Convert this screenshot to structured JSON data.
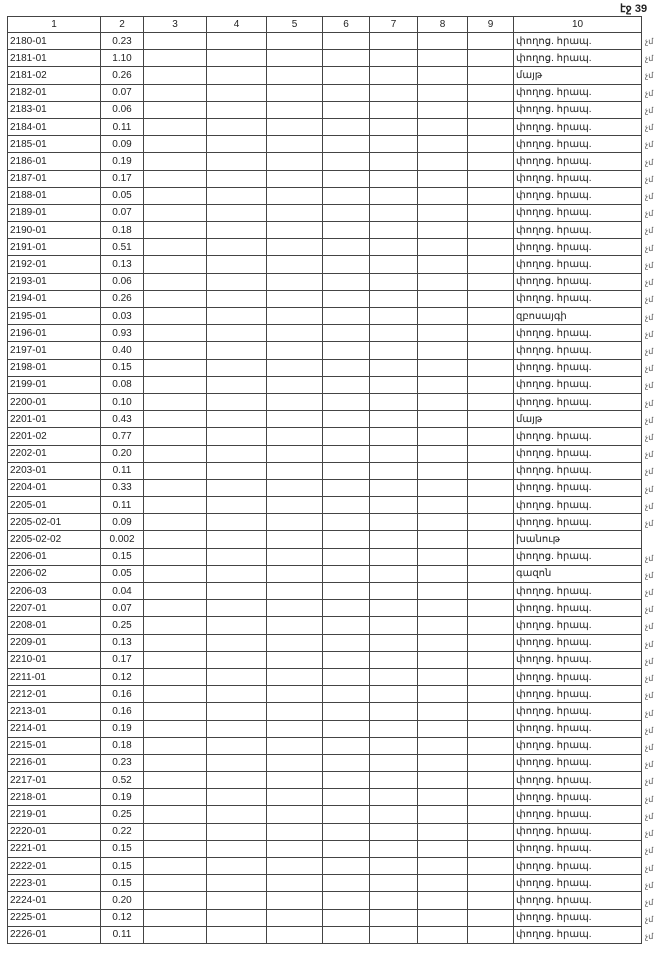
{
  "page_number": "էջ 39",
  "columns": [
    "1",
    "2",
    "3",
    "4",
    "5",
    "6",
    "7",
    "8",
    "9",
    "10"
  ],
  "rows": [
    {
      "code": "2180-01",
      "value": "0.23",
      "type": "փողոց. հրապ.",
      "mark": "չմ"
    },
    {
      "code": "2181-01",
      "value": "1.10",
      "type": "փողոց. հրապ.",
      "mark": "չմ"
    },
    {
      "code": "2181-02",
      "value": "0.26",
      "type": "մայթ",
      "mark": "չմ"
    },
    {
      "code": "2182-01",
      "value": "0.07",
      "type": "փողոց. հրապ.",
      "mark": "չմ"
    },
    {
      "code": "2183-01",
      "value": "0.06",
      "type": "փողոց. հրապ.",
      "mark": "չմ"
    },
    {
      "code": "2184-01",
      "value": "0.11",
      "type": "փողոց. հրապ.",
      "mark": "չմ"
    },
    {
      "code": "2185-01",
      "value": "0.09",
      "type": "փողոց. հրապ.",
      "mark": "չմ"
    },
    {
      "code": "2186-01",
      "value": "0.19",
      "type": "փողոց. հրապ.",
      "mark": "չմ"
    },
    {
      "code": "2187-01",
      "value": "0.17",
      "type": "փողոց. հրապ.",
      "mark": "չմ"
    },
    {
      "code": "2188-01",
      "value": "0.05",
      "type": "փողոց. հրապ.",
      "mark": "չմ"
    },
    {
      "code": "2189-01",
      "value": "0.07",
      "type": "փողոց. հրապ.",
      "mark": "չմ"
    },
    {
      "code": "2190-01",
      "value": "0.18",
      "type": "փողոց. հրապ.",
      "mark": "չմ"
    },
    {
      "code": "2191-01",
      "value": "0.51",
      "type": "փողոց. հրապ.",
      "mark": "չմ"
    },
    {
      "code": "2192-01",
      "value": "0.13",
      "type": "փողոց. հրապ.",
      "mark": "չմ"
    },
    {
      "code": "2193-01",
      "value": "0.06",
      "type": "փողոց. հրապ.",
      "mark": "չմ"
    },
    {
      "code": "2194-01",
      "value": "0.26",
      "type": "փողոց. հրապ.",
      "mark": "չմ"
    },
    {
      "code": "2195-01",
      "value": "0.03",
      "type": "զբոսայգի",
      "mark": "չմ"
    },
    {
      "code": "2196-01",
      "value": "0.93",
      "type": "փողոց. հրապ.",
      "mark": "չմ"
    },
    {
      "code": "2197-01",
      "value": "0.40",
      "type": "փողոց. հրապ.",
      "mark": "չմ"
    },
    {
      "code": "2198-01",
      "value": "0.15",
      "type": "փողոց. հրապ.",
      "mark": "չմ"
    },
    {
      "code": "2199-01",
      "value": "0.08",
      "type": "փողոց. հրապ.",
      "mark": "չմ"
    },
    {
      "code": "2200-01",
      "value": "0.10",
      "type": "փողոց. հրապ.",
      "mark": "չմ"
    },
    {
      "code": "2201-01",
      "value": "0.43",
      "type": "մայթ",
      "mark": "չմ"
    },
    {
      "code": "2201-02",
      "value": "0.77",
      "type": "փողոց. հրապ.",
      "mark": "չմ"
    },
    {
      "code": "2202-01",
      "value": "0.20",
      "type": "փողոց. հրապ.",
      "mark": "չմ"
    },
    {
      "code": "2203-01",
      "value": "0.11",
      "type": "փողոց. հրապ.",
      "mark": "չմ"
    },
    {
      "code": "2204-01",
      "value": "0.33",
      "type": "փողոց. հրապ.",
      "mark": "չմ"
    },
    {
      "code": "2205-01",
      "value": "0.11",
      "type": "փողոց. հրապ.",
      "mark": "չմ"
    },
    {
      "code": "2205-02-01",
      "value": "0.09",
      "type": "փողոց. հրապ.",
      "mark": "չմ"
    },
    {
      "code": "2205-02-02",
      "value": "0.002",
      "type": "խանութ",
      "mark": ""
    },
    {
      "code": "2206-01",
      "value": "0.15",
      "type": "փողոց. հրապ.",
      "mark": "չմ"
    },
    {
      "code": "2206-02",
      "value": "0.05",
      "type": "գազոն",
      "mark": "չմ"
    },
    {
      "code": "2206-03",
      "value": "0.04",
      "type": "փողոց. հրապ.",
      "mark": "չմ"
    },
    {
      "code": "2207-01",
      "value": "0.07",
      "type": "փողոց. հրապ.",
      "mark": "չմ"
    },
    {
      "code": "2208-01",
      "value": "0.25",
      "type": "փողոց. հրապ.",
      "mark": "չմ"
    },
    {
      "code": "2209-01",
      "value": "0.13",
      "type": "փողոց. հրապ.",
      "mark": "չմ"
    },
    {
      "code": "2210-01",
      "value": "0.17",
      "type": "փողոց. հրապ.",
      "mark": "չմ"
    },
    {
      "code": "2211-01",
      "value": "0.12",
      "type": "փողոց. հրապ.",
      "mark": "չմ"
    },
    {
      "code": "2212-01",
      "value": "0.16",
      "type": "փողոց. հրապ.",
      "mark": "չմ"
    },
    {
      "code": "2213-01",
      "value": "0.16",
      "type": "փողոց. հրապ.",
      "mark": "չմ"
    },
    {
      "code": "2214-01",
      "value": "0.19",
      "type": "փողոց. հրապ.",
      "mark": "չմ"
    },
    {
      "code": "2215-01",
      "value": "0.18",
      "type": "փողոց. հրապ.",
      "mark": "չմ"
    },
    {
      "code": "2216-01",
      "value": "0.23",
      "type": "փողոց. հրապ.",
      "mark": "չմ"
    },
    {
      "code": "2217-01",
      "value": "0.52",
      "type": "փողոց. հրապ.",
      "mark": "չմ"
    },
    {
      "code": "2218-01",
      "value": "0.19",
      "type": "փողոց. հրապ.",
      "mark": "չմ"
    },
    {
      "code": "2219-01",
      "value": "0.25",
      "type": "փողոց. հրապ.",
      "mark": "չմ"
    },
    {
      "code": "2220-01",
      "value": "0.22",
      "type": "փողոց. հրապ.",
      "mark": "չմ"
    },
    {
      "code": "2221-01",
      "value": "0.15",
      "type": "փողոց. հրապ.",
      "mark": "չմ"
    },
    {
      "code": "2222-01",
      "value": "0.15",
      "type": "փողոց. հրապ.",
      "mark": "չմ"
    },
    {
      "code": "2223-01",
      "value": "0.15",
      "type": "փողոց. հրապ.",
      "mark": "չմ"
    },
    {
      "code": "2224-01",
      "value": "0.20",
      "type": "փողոց. հրապ.",
      "mark": "չմ"
    },
    {
      "code": "2225-01",
      "value": "0.12",
      "type": "փողոց. հրապ.",
      "mark": "չմ"
    },
    {
      "code": "2226-01",
      "value": "0.11",
      "type": "փողոց. հրապ.",
      "mark": "չմ"
    }
  ]
}
